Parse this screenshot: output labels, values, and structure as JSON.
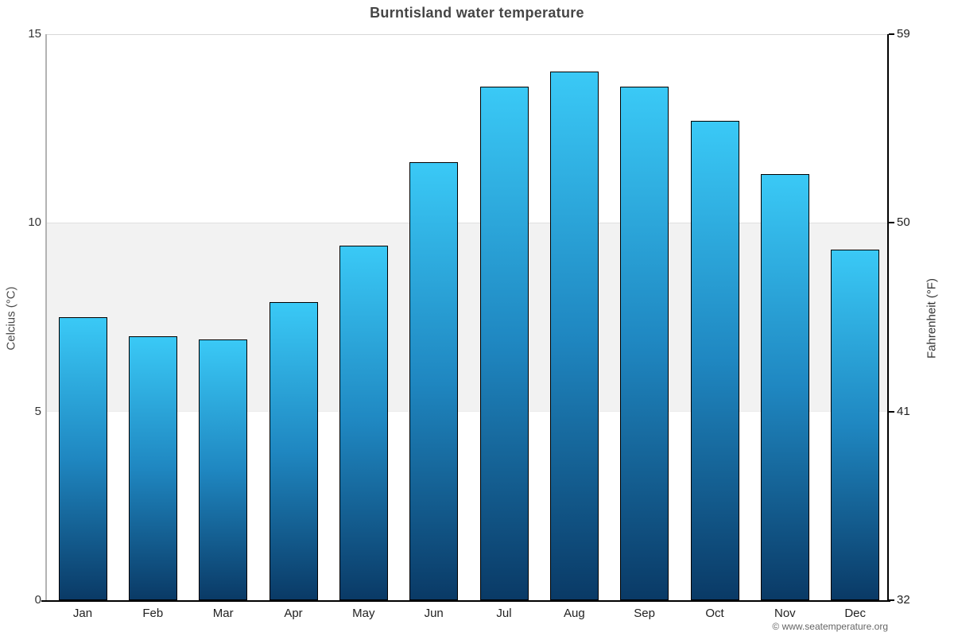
{
  "title": "Burntisland water temperature",
  "credit": "© www.seatemperature.org",
  "chart_data": {
    "type": "bar",
    "title": "Burntisland water temperature",
    "categories": [
      "Jan",
      "Feb",
      "Mar",
      "Apr",
      "May",
      "Jun",
      "Jul",
      "Aug",
      "Sep",
      "Oct",
      "Nov",
      "Dec"
    ],
    "values": [
      7.5,
      7.0,
      6.9,
      7.9,
      9.4,
      11.6,
      13.6,
      14.0,
      13.6,
      12.7,
      11.3,
      9.3
    ],
    "unit": "°C",
    "ylabel_left": "Celcius (°C)",
    "ylabel_right": "Fahrenheit (°F)",
    "yticks_left": [
      0,
      5,
      10,
      15
    ],
    "yticks_right": [
      32,
      41,
      50,
      59
    ],
    "ylim": [
      0,
      15
    ],
    "shaded_band_celsius": [
      5,
      10
    ],
    "legend": "none",
    "grid": "top gridline at 15, shaded band between 5 and 10"
  },
  "colors": {
    "bar_gradient_top": "#3ac9f6",
    "bar_gradient_mid": "#1f87c1",
    "bar_gradient_bottom": "#0a3a66",
    "bar_border": "#000000",
    "shaded_band": "#f2f2f2",
    "gridline": "#d8d8d8",
    "left_axis_line": "#b3b3b3",
    "dark_axis_line": "#000000",
    "title_text": "#454545",
    "tick_text": "#222222",
    "credit_text": "#666666"
  }
}
